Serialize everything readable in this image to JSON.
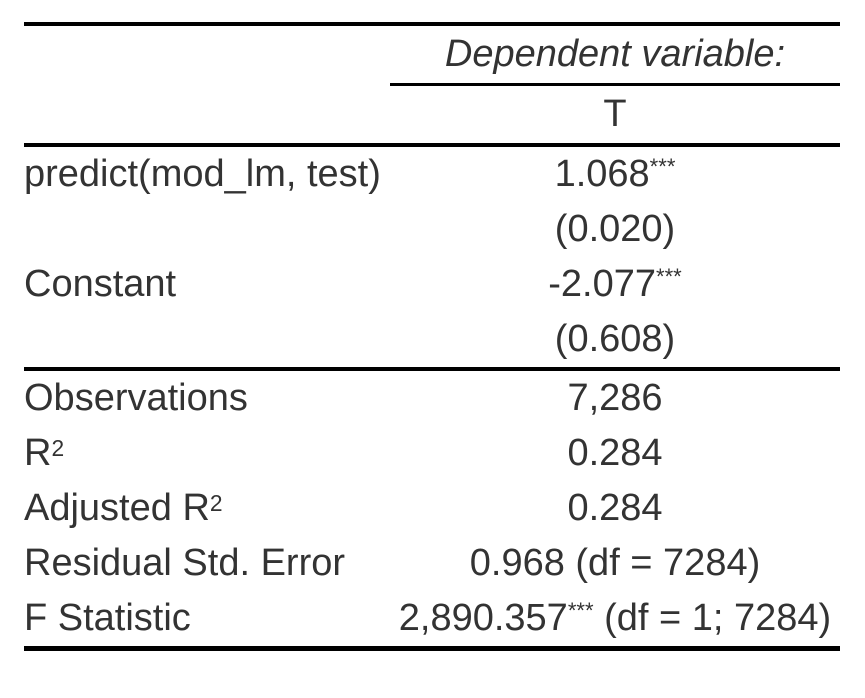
{
  "table": {
    "header": {
      "dependent_variable_label": "Dependent variable:",
      "column_label": "T"
    },
    "coefficients": [
      {
        "label": "predict(mod_lm, test)",
        "estimate": "1.068",
        "stars": "***",
        "std_error": "(0.020)"
      },
      {
        "label": "Constant",
        "estimate": "-2.077",
        "stars": "***",
        "std_error": "(0.608)"
      }
    ],
    "statistics": [
      {
        "label": "Observations",
        "value": "7,286"
      },
      {
        "label_base": "R",
        "label_sup": "2",
        "value": "0.284"
      },
      {
        "label_base": "Adjusted R",
        "label_sup": "2",
        "value": "0.284"
      },
      {
        "label": "Residual Std. Error",
        "value": "0.968 (df = 7284)"
      },
      {
        "label": "F Statistic",
        "value_main": "2,890.357",
        "value_stars": "***",
        "value_suffix": " (df = 1; 7284)"
      }
    ],
    "colors": {
      "background": "#ffffff",
      "text": "#333333",
      "rule": "#000000"
    }
  }
}
